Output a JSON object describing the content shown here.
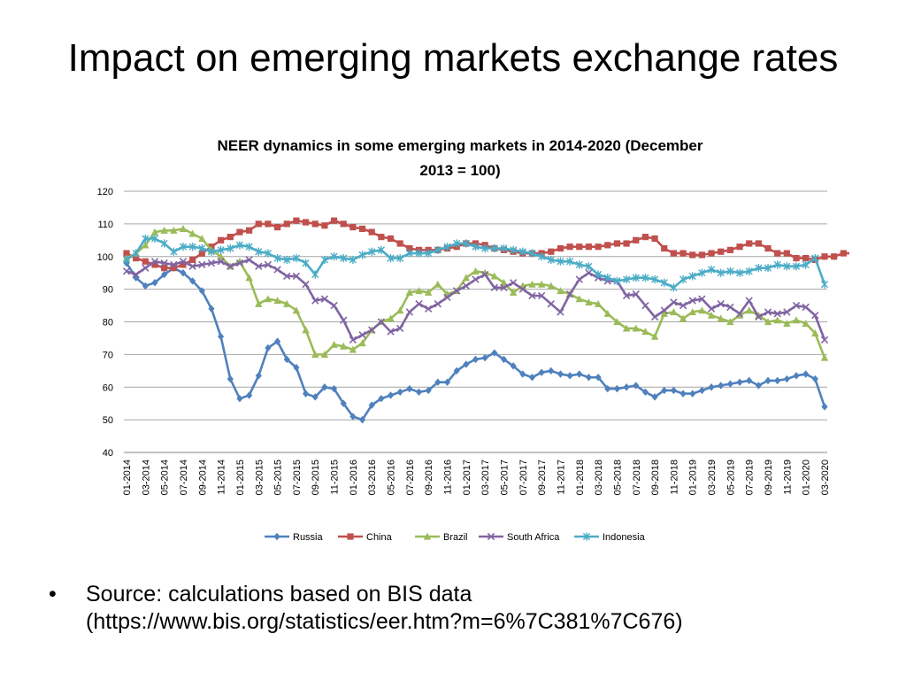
{
  "slide": {
    "title": "Impact on emerging markets exchange rates",
    "bullet_symbol": "•",
    "source_line1": "Source: calculations based on BIS data",
    "source_line2": "(https://www.bis.org/statistics/eer.htm?m=6%7C381%7C676)"
  },
  "chart_data": {
    "type": "line",
    "title": "NEER dynamics in some emerging markets in 2014-2020 (December 2013 = 100)",
    "title_lines": [
      "NEER dynamics in some emerging markets in 2014-2020 (December",
      "2013 = 100)"
    ],
    "xlabel": "",
    "ylabel": "",
    "ylim": [
      40,
      120
    ],
    "yticks": [
      40,
      50,
      60,
      70,
      80,
      90,
      100,
      110,
      120
    ],
    "grid": true,
    "legend_position": "bottom",
    "x_tick_labels": [
      "01-2014",
      "03-2014",
      "05-2014",
      "07-2014",
      "09-2014",
      "11-2014",
      "01-2015",
      "03-2015",
      "05-2015",
      "07-2015",
      "09-2015",
      "11-2015",
      "01-2016",
      "03-2016",
      "05-2016",
      "07-2016",
      "09-2016",
      "11-2016",
      "01-2017",
      "03-2017",
      "05-2017",
      "07-2017",
      "09-2017",
      "11-2017",
      "01-2018",
      "03-2018",
      "05-2018",
      "07-2018",
      "09-2018",
      "11-2018",
      "01-2019",
      "03-2019",
      "05-2019",
      "07-2019",
      "09-2019",
      "11-2019",
      "01-2020",
      "03-2020"
    ],
    "series": [
      {
        "name": "Russia",
        "color": "#4F81BD",
        "marker": "diamond",
        "values": [
          98,
          93.5,
          91,
          92,
          94.5,
          96.5,
          95,
          92.5,
          89.5,
          84,
          75.5,
          62.5,
          56.5,
          57.5,
          63.5,
          72,
          74,
          68.5,
          66,
          58,
          57,
          60,
          59.5,
          55,
          51,
          50,
          54.5,
          56.5,
          57.5,
          58.5,
          59.5,
          58.5,
          59,
          61.5,
          61.5,
          65,
          67,
          68.5,
          69,
          70.5,
          68.5,
          66.5,
          64,
          63,
          64.5,
          65,
          64,
          63.5,
          64,
          63,
          63,
          59.5,
          59.5,
          60,
          60.5,
          58.5,
          57,
          59,
          59,
          58,
          58,
          59,
          60,
          60.5,
          61,
          61.5,
          62,
          60.5,
          62,
          62,
          62.5,
          63.5,
          64,
          62.5,
          54
        ]
      },
      {
        "name": "China",
        "color": "#C0504D",
        "marker": "square",
        "values": [
          101,
          99.5,
          98.5,
          97.5,
          96.5,
          96.5,
          97.5,
          99,
          101,
          103,
          105,
          106,
          107.5,
          108,
          110,
          110,
          109,
          110,
          111,
          110.5,
          110,
          109.5,
          111,
          110,
          109,
          108.5,
          107.5,
          106,
          105.5,
          104,
          102.5,
          102,
          102,
          102,
          102.5,
          103,
          104,
          104,
          103.5,
          102.5,
          102,
          101.5,
          101,
          101,
          101,
          101.5,
          102.5,
          103,
          103,
          103,
          103,
          103.5,
          104,
          104,
          105,
          106,
          105.5,
          102.5,
          101,
          101,
          100.5,
          100.5,
          101,
          101.5,
          102,
          103,
          104,
          104,
          102.5,
          101,
          101,
          99.5,
          99.5,
          99,
          100,
          100,
          101,
          101,
          102.5
        ]
      },
      {
        "name": "Brazil",
        "color": "#9BBB59",
        "marker": "triangle",
        "values": [
          99.5,
          101,
          103.5,
          107.5,
          108,
          108,
          108.5,
          107,
          105.5,
          102,
          100,
          97,
          98.5,
          93.5,
          85.5,
          87,
          86.5,
          85.5,
          83.5,
          77.5,
          70,
          70,
          73,
          72.5,
          71.5,
          73.5,
          77.5,
          80,
          81,
          83.5,
          89,
          89.5,
          89,
          91.5,
          88.5,
          89.5,
          93.5,
          95.5,
          95,
          94,
          92,
          89,
          91,
          91.5,
          91.5,
          91,
          89.5,
          88.5,
          87,
          86,
          85.5,
          82.5,
          80,
          78,
          78,
          77,
          75.5,
          82.5,
          83,
          81,
          83,
          83.5,
          82,
          81,
          80,
          82,
          83.5,
          82,
          80,
          80.5,
          79.5,
          80.5,
          79.5,
          76.5,
          69
        ]
      },
      {
        "name": "South Africa",
        "color": "#8064A2",
        "marker": "x",
        "values": [
          95.5,
          94.5,
          96.5,
          98.5,
          98,
          97.5,
          98.5,
          97,
          97.5,
          98,
          98.5,
          97,
          98,
          99,
          97,
          97.5,
          96,
          94,
          94,
          91.5,
          86.5,
          87,
          85,
          80.5,
          74.5,
          76,
          77.5,
          80,
          77,
          78,
          83,
          85.5,
          84,
          85.5,
          87.5,
          89.5,
          91,
          93,
          94.5,
          90.5,
          90.5,
          92,
          90,
          88,
          88,
          85.5,
          83,
          88.5,
          93,
          95,
          93.5,
          92.5,
          92.5,
          88,
          88.5,
          85,
          81.5,
          83.5,
          86,
          85,
          86.5,
          87,
          84,
          85.5,
          84.5,
          82.5,
          86.5,
          81.5,
          83,
          82.5,
          83,
          85,
          84.5,
          82,
          74.5
        ]
      },
      {
        "name": "Indonesia",
        "color": "#4BACC6",
        "marker": "asterisk",
        "values": [
          99,
          101,
          105.5,
          105.5,
          104,
          101.5,
          103,
          103,
          102.5,
          101.5,
          102,
          102.5,
          103.5,
          103,
          101.5,
          101,
          99.5,
          99,
          99.5,
          98,
          94.5,
          99,
          100,
          99.5,
          99,
          100.5,
          101.5,
          102,
          99.5,
          99.5,
          101,
          101,
          101,
          102,
          103,
          104,
          104,
          103,
          102.5,
          102.5,
          102.5,
          102,
          101.5,
          101,
          100,
          99,
          98.5,
          98.5,
          97.5,
          97,
          94.5,
          93.5,
          92.5,
          93,
          93.5,
          93.5,
          93,
          92,
          90.5,
          93,
          94,
          95,
          96,
          95,
          95.5,
          95,
          95.5,
          96.5,
          96.5,
          97.5,
          97,
          97,
          97.5,
          99.5,
          91.5
        ]
      }
    ]
  }
}
